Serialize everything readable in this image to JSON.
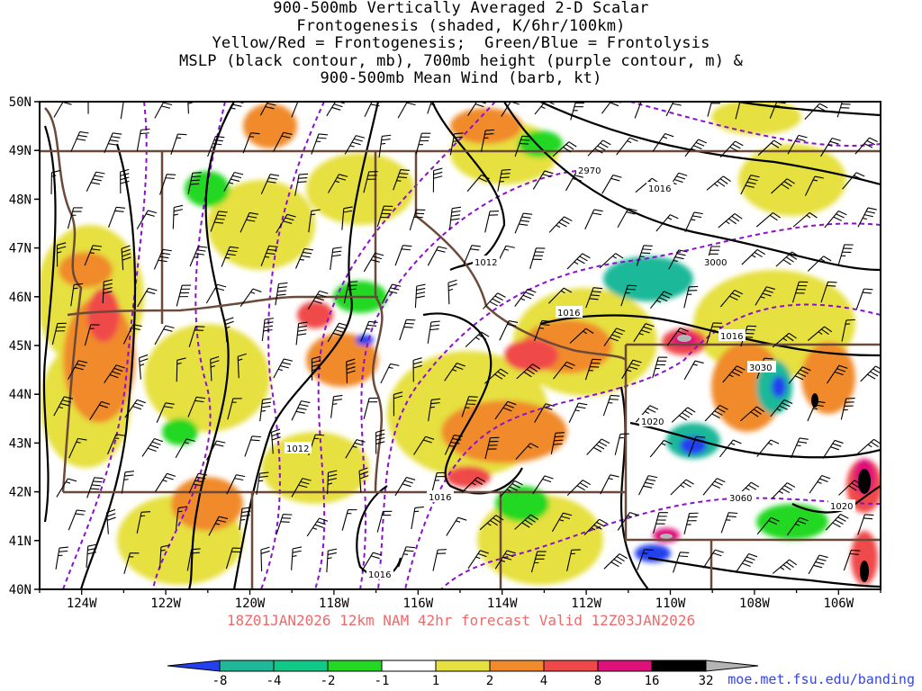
{
  "title": {
    "lines": [
      "900-500mb Vertically Averaged 2-D Scalar",
      "Frontogenesis (shaded, K/6hr/100km)",
      "Yellow/Red = Frontogenesis;  Green/Blue = Frontolysis",
      "MSLP (black contour, mb), 700mb height (purple contour, m) &",
      "900-500mb Mean Wind (barb, kt)"
    ]
  },
  "map": {
    "lon_range": [
      -125,
      -105
    ],
    "lat_range": [
      40,
      50
    ],
    "lat_labels": [
      "50N",
      "49N",
      "48N",
      "47N",
      "46N",
      "45N",
      "44N",
      "43N",
      "42N",
      "41N",
      "40N"
    ],
    "lon_labels": [
      "124W",
      "122W",
      "120W",
      "118W",
      "116W",
      "114W",
      "112W",
      "110W",
      "108W",
      "106W"
    ],
    "mslp_labels": [
      "1016",
      "1012",
      "1016",
      "1016",
      "1020",
      "1012",
      "1016",
      "1016",
      "1020"
    ],
    "height_labels": [
      "2970",
      "3000",
      "3030",
      "3060"
    ]
  },
  "footer": {
    "valid_text": "18Z01JAN2026 12km NAM 42hr forecast Valid 12Z03JAN2026",
    "credit": "moe.met.fsu.edu/banding"
  },
  "legend": {
    "labels": [
      "-8",
      "-4",
      "-2",
      "-1",
      "1",
      "2",
      "4",
      "8",
      "16",
      "32"
    ],
    "colors": [
      "#2340ee",
      "#1fb89a",
      "#10c888",
      "#22d822",
      "#ffffff",
      "#e6e040",
      "#f08a2a",
      "#f04848",
      "#e0107a",
      "#000000",
      "#b4b4b4"
    ]
  },
  "colors": {
    "mslp_contour": "#000000",
    "height_contour": "#8a10d0",
    "boundary": "#6b4a3a",
    "valid_text": "#ef6a6a",
    "credit": "#3344ee"
  }
}
